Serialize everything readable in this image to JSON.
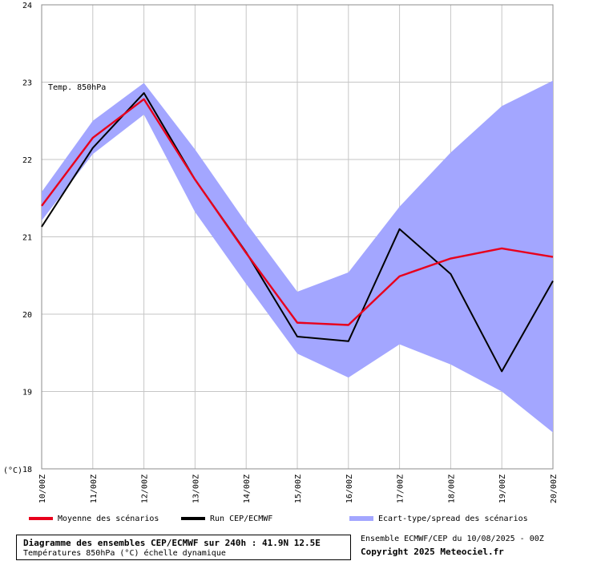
{
  "chart_data": {
    "type": "line",
    "title": "Temp. 850hPa",
    "unit_label": "(°C)",
    "x": [
      "10/00Z",
      "11/00Z",
      "12/00Z",
      "13/00Z",
      "14/00Z",
      "15/00Z",
      "16/00Z",
      "17/00Z",
      "18/00Z",
      "19/00Z",
      "20/00Z"
    ],
    "ylim": [
      18,
      24
    ],
    "yticks": [
      18,
      19,
      20,
      21,
      22,
      23,
      24
    ],
    "grid": true,
    "series": [
      {
        "name": "Moyenne des scénarios",
        "kind": "line",
        "color": "#e8001c",
        "values": [
          21.4,
          22.28,
          22.78,
          21.74,
          20.79,
          19.89,
          19.86,
          20.49,
          20.72,
          20.85,
          20.74
        ]
      },
      {
        "name": "Run CEP/ECMWF",
        "kind": "line",
        "color": "#000000",
        "values": [
          21.13,
          22.15,
          22.86,
          21.74,
          20.8,
          19.71,
          19.65,
          21.1,
          20.52,
          19.26,
          20.43
        ]
      },
      {
        "name": "Ecart-type/spread des scénarios",
        "kind": "band",
        "color": "#a3a6ff",
        "upper": [
          21.58,
          22.5,
          22.99,
          22.13,
          21.18,
          20.29,
          20.54,
          21.39,
          22.09,
          22.69,
          23.02
        ],
        "lower": [
          21.21,
          22.07,
          22.58,
          21.32,
          20.39,
          19.49,
          19.18,
          19.61,
          19.35,
          19.0,
          18.47
        ]
      }
    ]
  },
  "footer": {
    "title": "Diagramme des ensembles CEP/ECMWF sur 240h : 41.9N 12.5E",
    "subtitle": "Températures 850hPa (°C) échelle dynamique",
    "run_info": "Ensemble ECMWF/CEP du 10/08/2025 - 00Z",
    "copyright": "Copyright 2025 Meteociel.fr"
  }
}
